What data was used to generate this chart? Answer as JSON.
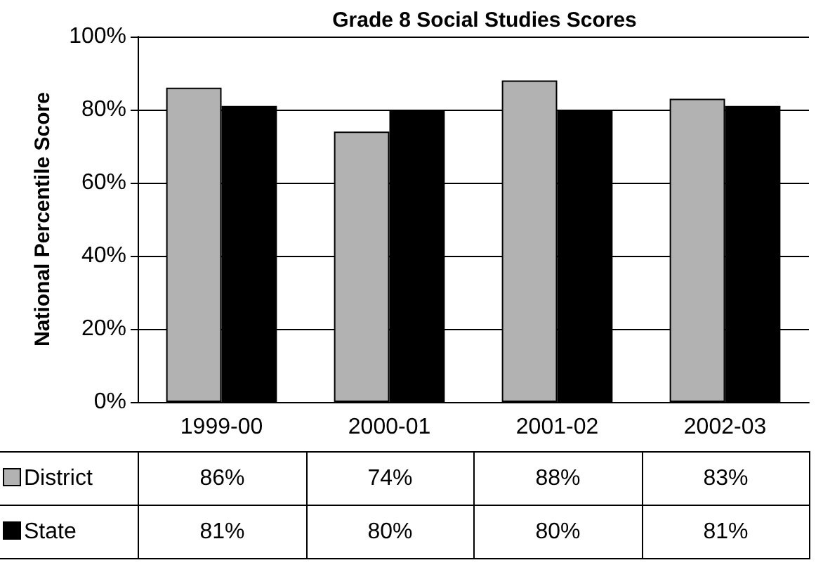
{
  "chart_data": {
    "type": "bar",
    "title": "Grade 8 Social Studies Scores",
    "ylabel": "National Percentile Score",
    "categories": [
      "1999-00",
      "2000-01",
      "2001-02",
      "2002-03"
    ],
    "series": [
      {
        "name": "District",
        "color": "#b2b2b2",
        "values": [
          86,
          74,
          88,
          83
        ],
        "value_labels": [
          "86%",
          "74%",
          "88%",
          "83%"
        ]
      },
      {
        "name": "State",
        "color": "#000000",
        "values": [
          81,
          80,
          80,
          81
        ],
        "value_labels": [
          "81%",
          "80%",
          "80%",
          "81%"
        ]
      }
    ],
    "ylim": [
      0,
      100
    ],
    "yticks": [
      {
        "value": 0,
        "label": "0%"
      },
      {
        "value": 20,
        "label": "20%"
      },
      {
        "value": 40,
        "label": "40%"
      },
      {
        "value": 60,
        "label": "60%"
      },
      {
        "value": 80,
        "label": "80%"
      },
      {
        "value": 100,
        "label": "100%"
      }
    ],
    "grid": "y",
    "legend": "bottom left"
  }
}
